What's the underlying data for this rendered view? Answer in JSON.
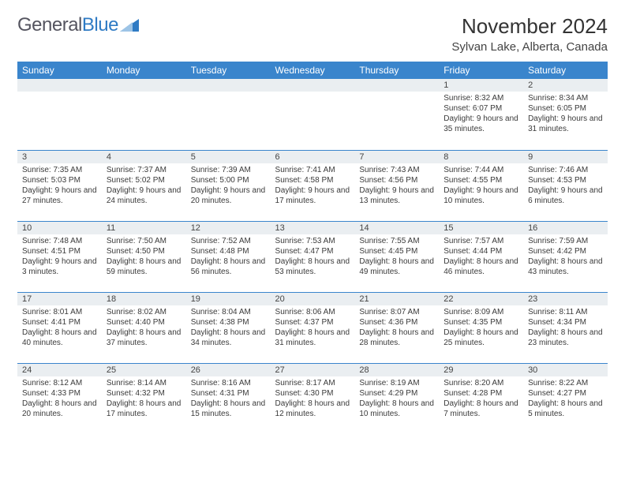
{
  "logo": {
    "text1": "General",
    "text2": "Blue",
    "triangle_color": "#2f7bc4"
  },
  "header": {
    "month_title": "November 2024",
    "location": "Sylvan Lake, Alberta, Canada"
  },
  "styles": {
    "header_bg": "#3a85cc",
    "header_fg": "#ffffff",
    "daynum_bg": "#eaeef1",
    "row_border": "#3a85cc",
    "page_bg": "#ffffff"
  },
  "day_names": [
    "Sunday",
    "Monday",
    "Tuesday",
    "Wednesday",
    "Thursday",
    "Friday",
    "Saturday"
  ],
  "weeks": [
    [
      {
        "n": "",
        "sunrise": "",
        "sunset": "",
        "daylight": ""
      },
      {
        "n": "",
        "sunrise": "",
        "sunset": "",
        "daylight": ""
      },
      {
        "n": "",
        "sunrise": "",
        "sunset": "",
        "daylight": ""
      },
      {
        "n": "",
        "sunrise": "",
        "sunset": "",
        "daylight": ""
      },
      {
        "n": "",
        "sunrise": "",
        "sunset": "",
        "daylight": ""
      },
      {
        "n": "1",
        "sunrise": "Sunrise: 8:32 AM",
        "sunset": "Sunset: 6:07 PM",
        "daylight": "Daylight: 9 hours and 35 minutes."
      },
      {
        "n": "2",
        "sunrise": "Sunrise: 8:34 AM",
        "sunset": "Sunset: 6:05 PM",
        "daylight": "Daylight: 9 hours and 31 minutes."
      }
    ],
    [
      {
        "n": "3",
        "sunrise": "Sunrise: 7:35 AM",
        "sunset": "Sunset: 5:03 PM",
        "daylight": "Daylight: 9 hours and 27 minutes."
      },
      {
        "n": "4",
        "sunrise": "Sunrise: 7:37 AM",
        "sunset": "Sunset: 5:02 PM",
        "daylight": "Daylight: 9 hours and 24 minutes."
      },
      {
        "n": "5",
        "sunrise": "Sunrise: 7:39 AM",
        "sunset": "Sunset: 5:00 PM",
        "daylight": "Daylight: 9 hours and 20 minutes."
      },
      {
        "n": "6",
        "sunrise": "Sunrise: 7:41 AM",
        "sunset": "Sunset: 4:58 PM",
        "daylight": "Daylight: 9 hours and 17 minutes."
      },
      {
        "n": "7",
        "sunrise": "Sunrise: 7:43 AM",
        "sunset": "Sunset: 4:56 PM",
        "daylight": "Daylight: 9 hours and 13 minutes."
      },
      {
        "n": "8",
        "sunrise": "Sunrise: 7:44 AM",
        "sunset": "Sunset: 4:55 PM",
        "daylight": "Daylight: 9 hours and 10 minutes."
      },
      {
        "n": "9",
        "sunrise": "Sunrise: 7:46 AM",
        "sunset": "Sunset: 4:53 PM",
        "daylight": "Daylight: 9 hours and 6 minutes."
      }
    ],
    [
      {
        "n": "10",
        "sunrise": "Sunrise: 7:48 AM",
        "sunset": "Sunset: 4:51 PM",
        "daylight": "Daylight: 9 hours and 3 minutes."
      },
      {
        "n": "11",
        "sunrise": "Sunrise: 7:50 AM",
        "sunset": "Sunset: 4:50 PM",
        "daylight": "Daylight: 8 hours and 59 minutes."
      },
      {
        "n": "12",
        "sunrise": "Sunrise: 7:52 AM",
        "sunset": "Sunset: 4:48 PM",
        "daylight": "Daylight: 8 hours and 56 minutes."
      },
      {
        "n": "13",
        "sunrise": "Sunrise: 7:53 AM",
        "sunset": "Sunset: 4:47 PM",
        "daylight": "Daylight: 8 hours and 53 minutes."
      },
      {
        "n": "14",
        "sunrise": "Sunrise: 7:55 AM",
        "sunset": "Sunset: 4:45 PM",
        "daylight": "Daylight: 8 hours and 49 minutes."
      },
      {
        "n": "15",
        "sunrise": "Sunrise: 7:57 AM",
        "sunset": "Sunset: 4:44 PM",
        "daylight": "Daylight: 8 hours and 46 minutes."
      },
      {
        "n": "16",
        "sunrise": "Sunrise: 7:59 AM",
        "sunset": "Sunset: 4:42 PM",
        "daylight": "Daylight: 8 hours and 43 minutes."
      }
    ],
    [
      {
        "n": "17",
        "sunrise": "Sunrise: 8:01 AM",
        "sunset": "Sunset: 4:41 PM",
        "daylight": "Daylight: 8 hours and 40 minutes."
      },
      {
        "n": "18",
        "sunrise": "Sunrise: 8:02 AM",
        "sunset": "Sunset: 4:40 PM",
        "daylight": "Daylight: 8 hours and 37 minutes."
      },
      {
        "n": "19",
        "sunrise": "Sunrise: 8:04 AM",
        "sunset": "Sunset: 4:38 PM",
        "daylight": "Daylight: 8 hours and 34 minutes."
      },
      {
        "n": "20",
        "sunrise": "Sunrise: 8:06 AM",
        "sunset": "Sunset: 4:37 PM",
        "daylight": "Daylight: 8 hours and 31 minutes."
      },
      {
        "n": "21",
        "sunrise": "Sunrise: 8:07 AM",
        "sunset": "Sunset: 4:36 PM",
        "daylight": "Daylight: 8 hours and 28 minutes."
      },
      {
        "n": "22",
        "sunrise": "Sunrise: 8:09 AM",
        "sunset": "Sunset: 4:35 PM",
        "daylight": "Daylight: 8 hours and 25 minutes."
      },
      {
        "n": "23",
        "sunrise": "Sunrise: 8:11 AM",
        "sunset": "Sunset: 4:34 PM",
        "daylight": "Daylight: 8 hours and 23 minutes."
      }
    ],
    [
      {
        "n": "24",
        "sunrise": "Sunrise: 8:12 AM",
        "sunset": "Sunset: 4:33 PM",
        "daylight": "Daylight: 8 hours and 20 minutes."
      },
      {
        "n": "25",
        "sunrise": "Sunrise: 8:14 AM",
        "sunset": "Sunset: 4:32 PM",
        "daylight": "Daylight: 8 hours and 17 minutes."
      },
      {
        "n": "26",
        "sunrise": "Sunrise: 8:16 AM",
        "sunset": "Sunset: 4:31 PM",
        "daylight": "Daylight: 8 hours and 15 minutes."
      },
      {
        "n": "27",
        "sunrise": "Sunrise: 8:17 AM",
        "sunset": "Sunset: 4:30 PM",
        "daylight": "Daylight: 8 hours and 12 minutes."
      },
      {
        "n": "28",
        "sunrise": "Sunrise: 8:19 AM",
        "sunset": "Sunset: 4:29 PM",
        "daylight": "Daylight: 8 hours and 10 minutes."
      },
      {
        "n": "29",
        "sunrise": "Sunrise: 8:20 AM",
        "sunset": "Sunset: 4:28 PM",
        "daylight": "Daylight: 8 hours and 7 minutes."
      },
      {
        "n": "30",
        "sunrise": "Sunrise: 8:22 AM",
        "sunset": "Sunset: 4:27 PM",
        "daylight": "Daylight: 8 hours and 5 minutes."
      }
    ]
  ]
}
